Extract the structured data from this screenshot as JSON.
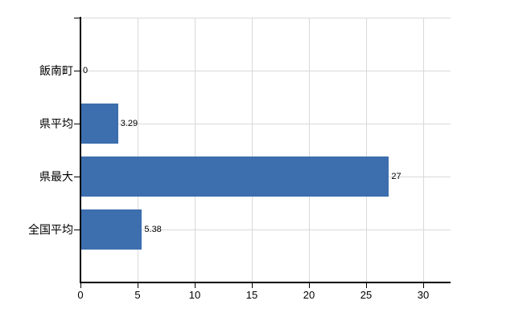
{
  "window": {
    "background": "#ffffff"
  },
  "chart_data": {
    "type": "bar",
    "orientation": "horizontal",
    "title": "",
    "xlabel": "",
    "ylabel": "",
    "categories": [
      "飯南町",
      "県平均",
      "県最大",
      "全国平均"
    ],
    "values": [
      0,
      3.29,
      27,
      5.38
    ],
    "value_labels": [
      "0",
      "3.29",
      "27",
      "5.38"
    ],
    "x_ticks": [
      "0",
      "5",
      "10",
      "15",
      "20",
      "25",
      "30"
    ],
    "x_tick_values": [
      0,
      5,
      10,
      15,
      20,
      25,
      30
    ],
    "xlim": [
      0,
      32.4
    ],
    "grid": true,
    "legend": null,
    "colors": {
      "bar": "#3d6eae",
      "grid": "#d9d9d9",
      "axis": "#000000",
      "text": "#000000",
      "background": "#ffffff"
    }
  }
}
